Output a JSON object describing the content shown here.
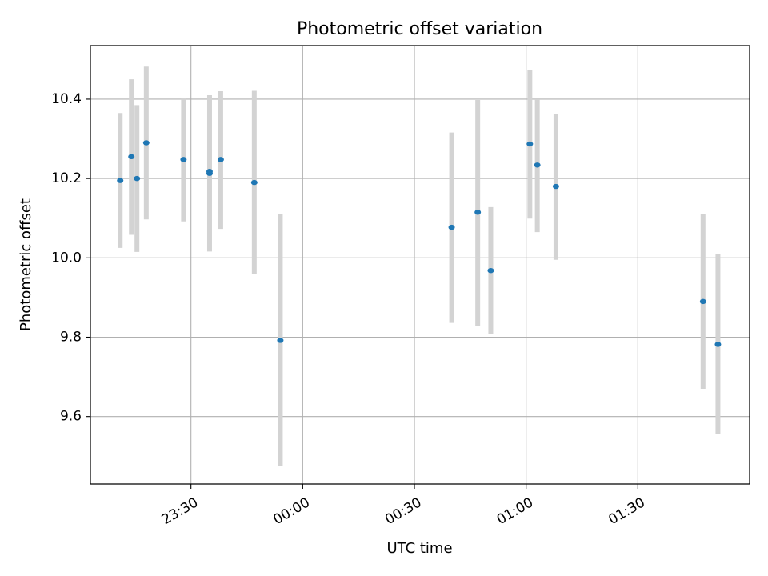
{
  "chart_data": {
    "type": "scatter",
    "title": "Photometric offset variation",
    "xlabel": "UTC time",
    "ylabel": "Photometric offset",
    "x_axis_unit": "minutes relative to 00:00 UTC",
    "xlim": [
      -57,
      120
    ],
    "ylim": [
      9.43,
      10.535
    ],
    "grid": true,
    "x_ticks": [
      {
        "value": -30,
        "label": "23:30"
      },
      {
        "value": 0,
        "label": "00:00"
      },
      {
        "value": 30,
        "label": "00:30"
      },
      {
        "value": 60,
        "label": "01:00"
      },
      {
        "value": 90,
        "label": "01:30"
      }
    ],
    "y_ticks": [
      {
        "value": 9.6,
        "label": "9.6"
      },
      {
        "value": 9.8,
        "label": "9.8"
      },
      {
        "value": 10.0,
        "label": "10.0"
      },
      {
        "value": 10.2,
        "label": "10.2"
      },
      {
        "value": 10.4,
        "label": "10.4"
      }
    ],
    "marker_color": "#1f77b4",
    "errorbar_color": "#d3d3d3",
    "points": [
      {
        "x": -49.0,
        "y": 10.195,
        "err_low": 10.025,
        "err_high": 10.365
      },
      {
        "x": -46.0,
        "y": 10.255,
        "err_low": 10.058,
        "err_high": 10.45
      },
      {
        "x": -44.5,
        "y": 10.2,
        "err_low": 10.015,
        "err_high": 10.385
      },
      {
        "x": -42.0,
        "y": 10.29,
        "err_low": 10.097,
        "err_high": 10.482
      },
      {
        "x": -32.0,
        "y": 10.248,
        "err_low": 10.092,
        "err_high": 10.404
      },
      {
        "x": -25.0,
        "y": 10.218,
        "err_low": 10.016,
        "err_high": 10.41
      },
      {
        "x": -25.0,
        "y": 10.213
      },
      {
        "x": -22.0,
        "y": 10.248,
        "err_low": 10.073,
        "err_high": 10.42
      },
      {
        "x": -13.0,
        "y": 10.19,
        "err_low": 9.96,
        "err_high": 10.421
      },
      {
        "x": -6.0,
        "y": 9.792,
        "err_low": 9.476,
        "err_high": 10.111
      },
      {
        "x": 40.0,
        "y": 10.077,
        "err_low": 9.836,
        "err_high": 10.316
      },
      {
        "x": 47.0,
        "y": 10.115,
        "err_low": 9.829,
        "err_high": 10.398
      },
      {
        "x": 50.5,
        "y": 9.968,
        "err_low": 9.808,
        "err_high": 10.128
      },
      {
        "x": 61.0,
        "y": 10.287,
        "err_low": 10.099,
        "err_high": 10.474
      },
      {
        "x": 63.0,
        "y": 10.234,
        "err_low": 10.065,
        "err_high": 10.4
      },
      {
        "x": 68.0,
        "y": 10.18,
        "err_low": 9.995,
        "err_high": 10.363
      },
      {
        "x": 107.5,
        "y": 9.89,
        "err_low": 9.67,
        "err_high": 10.11
      },
      {
        "x": 111.5,
        "y": 9.782,
        "err_low": 9.556,
        "err_high": 10.01
      }
    ]
  }
}
